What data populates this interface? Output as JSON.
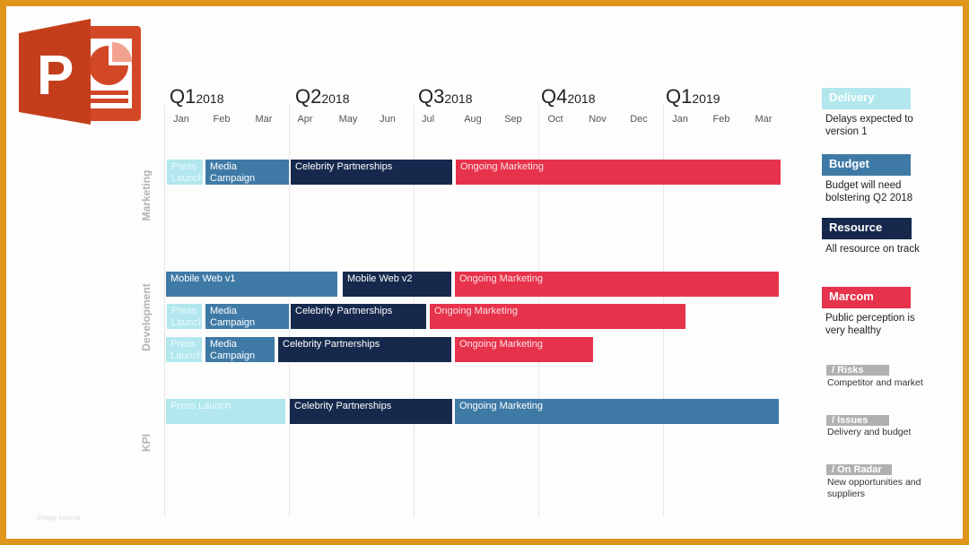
{
  "quarters": [
    {
      "q": "Q1",
      "year": "2018"
    },
    {
      "q": "Q2",
      "year": "2018"
    },
    {
      "q": "Q3",
      "year": "2018"
    },
    {
      "q": "Q4",
      "year": "2018"
    },
    {
      "q": "Q1",
      "year": "2019"
    }
  ],
  "months": [
    "Jan",
    "Feb",
    "Mar",
    "Apr",
    "May",
    "Jun",
    "Jul",
    "Aug",
    "Sep",
    "Oct",
    "Nov",
    "Dec",
    "Jan",
    "Feb",
    "Mar"
  ],
  "row_labels": {
    "marketing": "Marketing",
    "development": "Development",
    "kpi": "KPI"
  },
  "bars": {
    "m_press": "Press Launch",
    "m_media": "Media Campaign",
    "m_celeb": "Celebrity Partnerships",
    "m_ongoing": "Ongoing Marketing",
    "d1_mobile1": "Mobile Web v1",
    "d1_mobile2": "Mobile Web v2",
    "d1_ongoing": "Ongoing Marketing",
    "d2_press": "Press Launch",
    "d2_media": "Media Campaign",
    "d2_celeb": "Celebrity Partnerships",
    "d2_ongoing": "Ongoing Marketing",
    "d3_press": "Press Launch",
    "d3_media": "Media Campaign",
    "d3_celeb": "Celebrity Partnerships",
    "d3_ongoing": "Ongoing Marketing",
    "k_press": "Press Launch",
    "k_celeb": "Celebrity Partnerships",
    "k_ongoing": "Ongoing Marketing"
  },
  "legend": {
    "delivery": {
      "label": "Delivery",
      "text": "Delays expected to version 1",
      "color": "#b2e7ee"
    },
    "budget": {
      "label": "Budget",
      "text": "Budget will need bolstering Q2 2018",
      "color": "#3f7aa6"
    },
    "resource": {
      "label": "Resource",
      "text": "All resource on track",
      "color": "#16294d"
    },
    "marcom": {
      "label": "Marcom",
      "text": "Public perception is very healthy",
      "color": "#e6334b"
    }
  },
  "tags": {
    "risks": {
      "label": "/ Risks",
      "text": "Competitor and market"
    },
    "issues": {
      "label": "/ Issues",
      "text": "Delivery and budget"
    },
    "radar": {
      "label": "/ On Radar",
      "text": "New opportunities and suppliers"
    }
  },
  "footer": "Image source"
}
